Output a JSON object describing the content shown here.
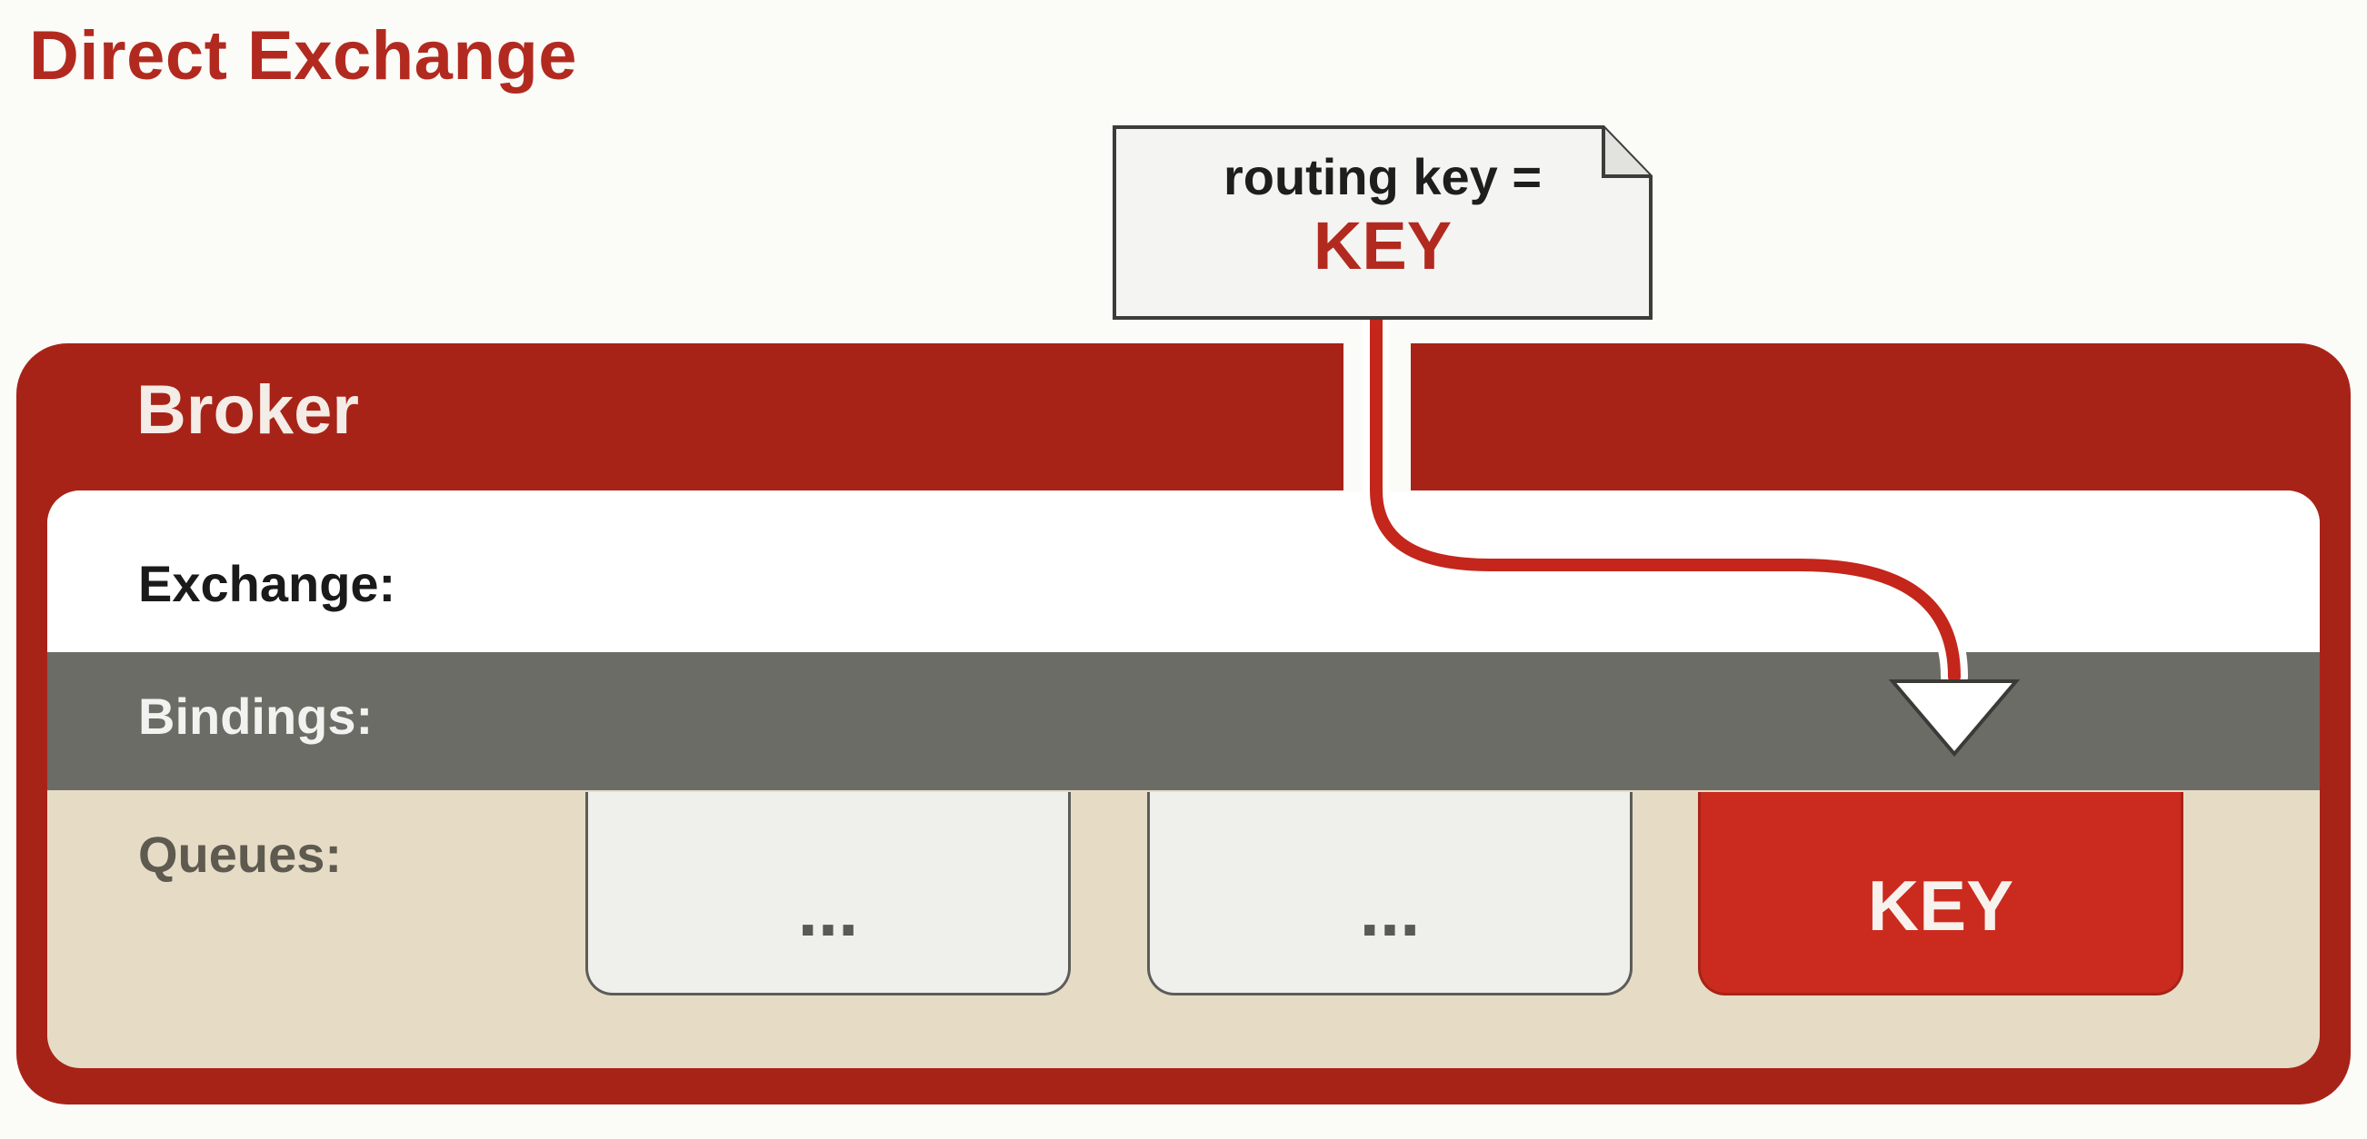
{
  "title": "Direct Exchange",
  "message": {
    "routing_key_label": "routing key =",
    "routing_key_value": "KEY"
  },
  "broker": {
    "label": "Broker",
    "rows": {
      "exchange": "Exchange:",
      "bindings": "Bindings:",
      "queues": "Queues:"
    },
    "queues": [
      {
        "label": "...",
        "highlighted": false
      },
      {
        "label": "...",
        "highlighted": false
      },
      {
        "label": "KEY",
        "highlighted": true
      }
    ]
  },
  "colors": {
    "brand_red": "#a82317",
    "title_red": "#b22a1f",
    "bindings_gray": "#6c6c67",
    "queues_beige": "#e6dcc6",
    "highlight_queue": "#ca2b1e"
  }
}
